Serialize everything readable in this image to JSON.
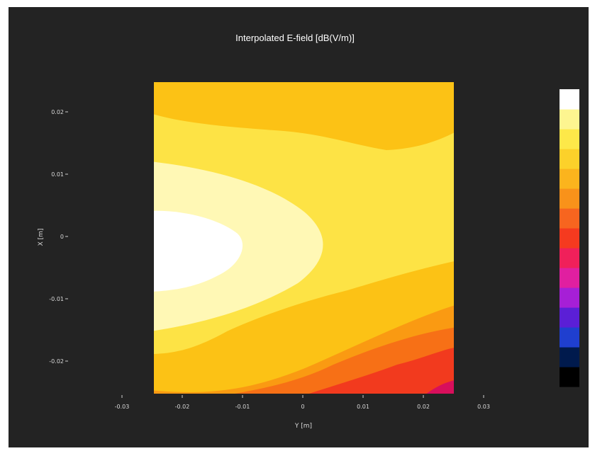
{
  "chart_data": {
    "type": "heatmap",
    "title": "Interpolated E-field [dB(V/m)]",
    "xlabel": "Y [m]",
    "ylabel": "X [m]",
    "xlim": [
      -0.025,
      0.025
    ],
    "ylim": [
      -0.025,
      0.0245
    ],
    "x_ticks": [
      -0.03,
      -0.02,
      -0.01,
      0,
      0.01,
      0.02,
      0.03
    ],
    "x_tick_labels": [
      "-0.03",
      "-0.02",
      "-0.01",
      "0",
      "0.01",
      "0.02",
      "0.03"
    ],
    "y_ticks": [
      0.02,
      0.01,
      0,
      -0.01,
      -0.02
    ],
    "y_tick_labels": [
      "0.02",
      "0.01",
      "0",
      "-0.01",
      "-0.02"
    ],
    "grid": false,
    "colorbar": {
      "position": "right",
      "colors": [
        "#000000",
        "#001a4d",
        "#1f3fcf",
        "#5b1fd6",
        "#a61fd6",
        "#e01fa0",
        "#f0205a",
        "#f53a1f",
        "#f7651f",
        "#f9921a",
        "#fbb41d",
        "#fcd12a",
        "#fde849",
        "#fdf590",
        "#ffffff"
      ]
    },
    "contour_bands": [
      {
        "level": 1,
        "color": "#d80f5c"
      },
      {
        "level": 2,
        "color": "#f23a1e"
      },
      {
        "level": 3,
        "color": "#f77016"
      },
      {
        "level": 4,
        "color": "#fa9a12"
      },
      {
        "level": 5,
        "color": "#fcc215"
      },
      {
        "level": 6,
        "color": "#fde345"
      },
      {
        "level": 7,
        "color": "#fff8b5"
      },
      {
        "level": 8,
        "color": "#ffffff"
      }
    ],
    "field_samples": [
      {
        "x": -0.025,
        "y": 0.0,
        "band": 8
      },
      {
        "x": -0.015,
        "y": 0.0,
        "band": 8
      },
      {
        "x": -0.005,
        "y": 0.0,
        "band": 7
      },
      {
        "x": 0.005,
        "y": 0.0,
        "band": 6
      },
      {
        "x": 0.015,
        "y": 0.0,
        "band": 6
      },
      {
        "x": -0.02,
        "y": 0.022,
        "band": 5
      },
      {
        "x": 0.01,
        "y": 0.02,
        "band": 5
      },
      {
        "x": -0.02,
        "y": -0.022,
        "band": 5
      },
      {
        "x": 0.0,
        "y": -0.022,
        "band": 3
      },
      {
        "x": 0.015,
        "y": -0.022,
        "band": 2
      },
      {
        "x": 0.024,
        "y": -0.024,
        "band": 1
      }
    ]
  }
}
